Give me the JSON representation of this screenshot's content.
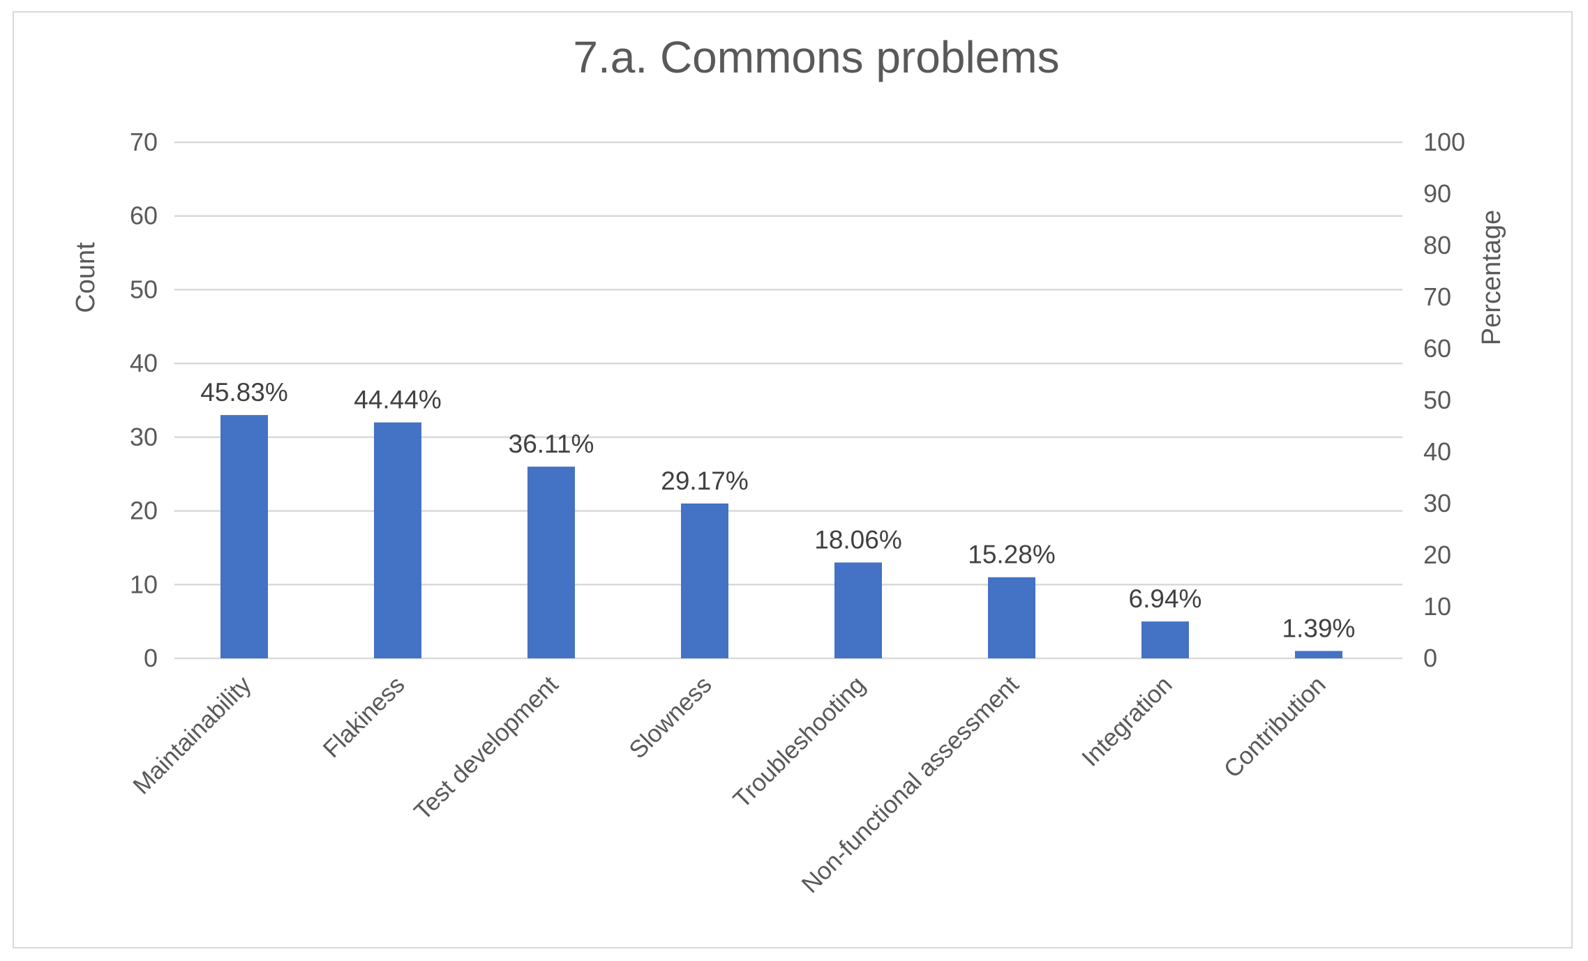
{
  "chart_data": {
    "type": "bar",
    "title": "7.a. Commons problems",
    "ylabel": "Count",
    "y2label": "Percentage",
    "ylim": [
      0,
      70
    ],
    "yticks": [
      0,
      10,
      20,
      30,
      40,
      50,
      60,
      70
    ],
    "y2lim": [
      0,
      100
    ],
    "y2ticks": [
      0,
      10,
      20,
      30,
      40,
      50,
      60,
      70,
      80,
      90,
      100
    ],
    "grid": true,
    "bar_color": "#4472C4",
    "categories": [
      "Maintainability",
      "Flakiness",
      "Test development",
      "Slowness",
      "Troubleshooting",
      "Non-functional assessment",
      "Integration",
      "Contribution"
    ],
    "values": [
      33,
      32,
      26,
      21,
      13,
      11,
      5,
      1
    ],
    "data_labels": [
      "45.83%",
      "44.44%",
      "36.11%",
      "29.17%",
      "18.06%",
      "15.28%",
      "6.94%",
      "1.39%"
    ]
  }
}
